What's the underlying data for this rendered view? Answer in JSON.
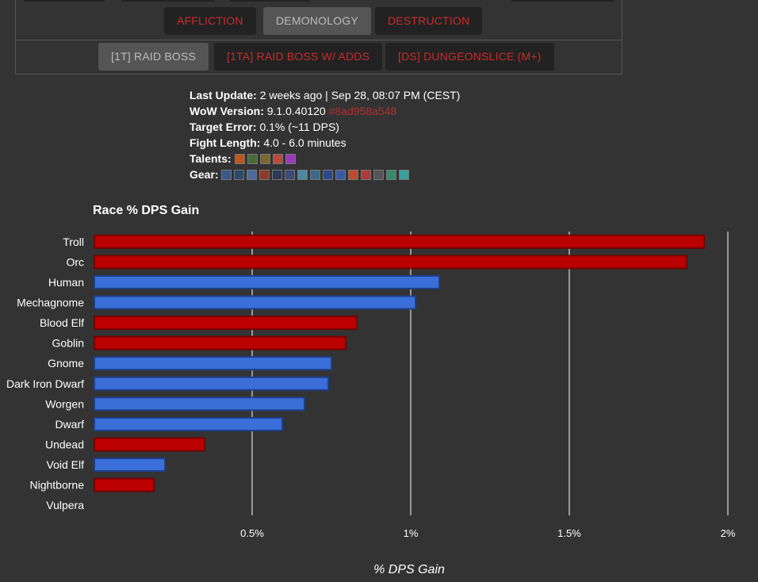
{
  "nav": {
    "specs": [
      {
        "label": "AFFLICTION",
        "active": false
      },
      {
        "label": "DEMONOLOGY",
        "active": true
      },
      {
        "label": "DESTRUCTION",
        "active": false
      }
    ],
    "fights": [
      {
        "label": "[1T] RAID BOSS",
        "active": true
      },
      {
        "label": "[1TA] RAID BOSS W/ ADDS",
        "active": false
      },
      {
        "label": "[DS] DUNGEONSLICE (M+)",
        "active": false
      }
    ]
  },
  "info": {
    "last_update_label": "Last Update:",
    "last_update_value": "2 weeks ago | Sep 28, 08:07 PM (CEST)",
    "wow_version_label": "WoW Version:",
    "wow_version_value": "9.1.0.40120",
    "wow_version_hash": "#8ad958a548",
    "target_error_label": "Target Error:",
    "target_error_value": "0.1% (~11 DPS)",
    "fight_length_label": "Fight Length:",
    "fight_length_value": "4.0 - 6.0 minutes",
    "talents_label": "Talents:",
    "talent_icons": [
      "#c0561c",
      "#4a6a3a",
      "#7a6a2a",
      "#b84a3a",
      "#9a3ab8"
    ],
    "gear_label": "Gear:",
    "gear_icons": [
      "#3a5a8a",
      "#2a4a6a",
      "#4a6aa0",
      "#8a3a2a",
      "#2a3a5a",
      "#3a4a7a",
      "#4a8aa0",
      "#3a6a8a",
      "#2a4a8a",
      "#3a5aa0",
      "#c04a2a",
      "#b03a3a",
      "#555555",
      "#3a8a6a",
      "#3aa0a0"
    ]
  },
  "chart_data": {
    "type": "bar",
    "orientation": "horizontal",
    "title": "Race % DPS Gain",
    "xlabel": "% DPS Gain",
    "xlim": [
      0,
      2
    ],
    "xticks": [
      {
        "value": 0.5,
        "label": "0.5%"
      },
      {
        "value": 1,
        "label": "1%"
      },
      {
        "value": 1.5,
        "label": "1.5%"
      },
      {
        "value": 2,
        "label": "2%"
      }
    ],
    "grid": true,
    "colors": {
      "horde": "#bb0000",
      "horde_border": "#770000",
      "alliance": "#3a6ed8",
      "alliance_border": "#1e3f8a"
    },
    "categories": [
      "Troll",
      "Orc",
      "Human",
      "Mechagnome",
      "Blood Elf",
      "Goblin",
      "Gnome",
      "Dark Iron Dwarf",
      "Worgen",
      "Dwarf",
      "Undead",
      "Void Elf",
      "Nightborne",
      "Vulpera"
    ],
    "values": [
      1.925,
      1.87,
      1.09,
      1.015,
      0.83,
      0.795,
      0.75,
      0.74,
      0.665,
      0.595,
      0.35,
      0.225,
      0.19,
      0.0
    ],
    "faction": [
      "horde",
      "horde",
      "alliance",
      "alliance",
      "horde",
      "horde",
      "alliance",
      "alliance",
      "alliance",
      "alliance",
      "horde",
      "alliance",
      "horde",
      "horde"
    ]
  }
}
